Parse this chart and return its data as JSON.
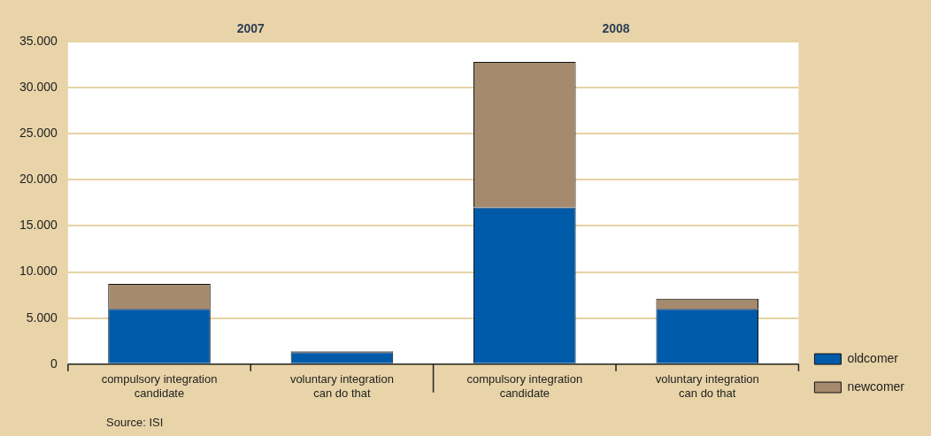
{
  "chart_data": {
    "type": "bar",
    "stacked": true,
    "categories": [
      "compulsory integration candidate",
      "voluntary integration can do that",
      "compulsory integration candidate",
      "voluntary integration can do that"
    ],
    "series": [
      {
        "name": "oldcomer",
        "color": "#005aaa",
        "values": [
          6000,
          1300,
          17000,
          6000
        ]
      },
      {
        "name": "newcomer",
        "color": "#a58a6e",
        "values": [
          2700,
          100,
          15800,
          1100
        ]
      }
    ],
    "ylim": [
      0,
      35000
    ],
    "yticks": [
      {
        "value": 0,
        "label": "0"
      },
      {
        "value": 5000,
        "label": "5.000"
      },
      {
        "value": 10000,
        "label": "10.000"
      },
      {
        "value": 15000,
        "label": "15.000"
      },
      {
        "value": 20000,
        "label": "20.000"
      },
      {
        "value": 25000,
        "label": "25.000"
      },
      {
        "value": 30000,
        "label": "30.000"
      },
      {
        "value": 35000,
        "label": "35.000"
      }
    ],
    "grid": "y",
    "legend": "right",
    "annotations": [
      "2007",
      "2008",
      "Source: ISI"
    ]
  }
}
